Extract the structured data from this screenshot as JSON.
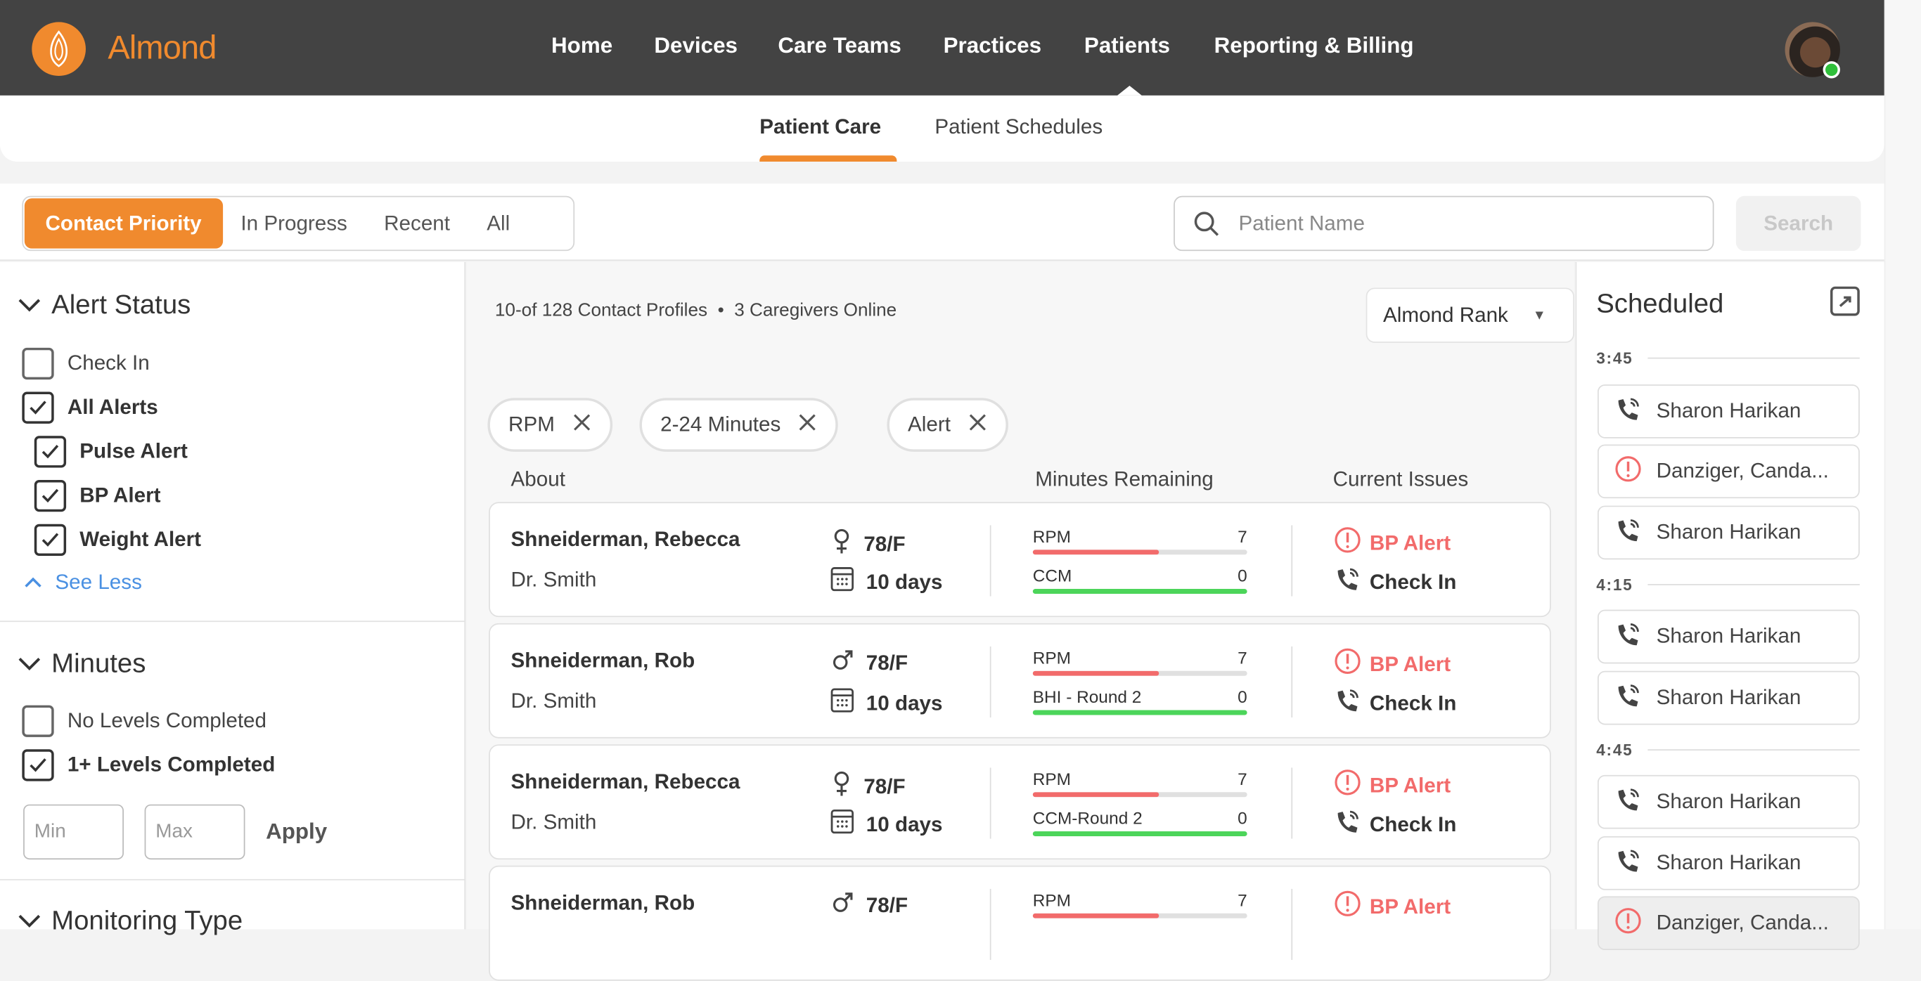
{
  "brand": {
    "name": "Almond",
    "accent": "#f08a2e"
  },
  "nav": {
    "items": [
      "Home",
      "Devices",
      "Care Teams",
      "Practices",
      "Patients",
      "Reporting & Billing"
    ],
    "active": "Patients"
  },
  "subnav": {
    "items": [
      "Patient Care",
      "Patient Schedules"
    ],
    "active": "Patient Care"
  },
  "filters": {
    "segments": [
      "Contact Priority",
      "In Progress",
      "Recent",
      "All"
    ],
    "active": "Contact Priority"
  },
  "search": {
    "placeholder": "Patient Name",
    "value": "",
    "button": "Search"
  },
  "sidebar": {
    "alert_status": {
      "title": "Alert Status",
      "items": [
        {
          "label": "Check In",
          "checked": false
        },
        {
          "label": "All Alerts",
          "checked": true
        },
        {
          "label": "Pulse Alert",
          "checked": true
        },
        {
          "label": "BP Alert",
          "checked": true
        },
        {
          "label": "Weight Alert",
          "checked": true
        }
      ],
      "see_less": "See Less"
    },
    "minutes": {
      "title": "Minutes",
      "items": [
        {
          "label": "No Levels Completed",
          "checked": false
        },
        {
          "label": "1+ Levels Completed",
          "checked": true
        }
      ],
      "min_placeholder": "Min",
      "max_placeholder": "Max",
      "apply": "Apply"
    },
    "monitoring_type": {
      "title": "Monitoring Type"
    }
  },
  "main": {
    "status": "10-of 128 Contact Profiles  •  3 Caregivers Online",
    "sort": "Almond Rank",
    "chips": [
      "RPM",
      "2-24 Minutes",
      "Alert"
    ],
    "columns": [
      "About",
      "Minutes Remaining",
      "Current Issues"
    ],
    "patients": [
      {
        "name": "Shneiderman, Rebecca",
        "doctor": "Dr. Smith",
        "gender_icon": "female",
        "age": "78/F",
        "days": "10 days",
        "programs": [
          {
            "label": "RPM",
            "value": "7",
            "progress": 0.59,
            "color": "#f26b6b"
          },
          {
            "label": "CCM",
            "value": "0",
            "progress": 1,
            "color": "#4cd55a"
          }
        ],
        "issues": [
          "BP Alert",
          "Check In"
        ]
      },
      {
        "name": "Shneiderman, Rob",
        "doctor": "Dr. Smith",
        "gender_icon": "male",
        "age": "78/F",
        "days": "10 days",
        "programs": [
          {
            "label": "RPM",
            "value": "7",
            "progress": 0.59,
            "color": "#f26b6b"
          },
          {
            "label": "BHI - Round 2",
            "value": "0",
            "progress": 1,
            "color": "#4cd55a"
          }
        ],
        "issues": [
          "BP Alert",
          "Check In"
        ]
      },
      {
        "name": "Shneiderman, Rebecca",
        "doctor": "Dr. Smith",
        "gender_icon": "female",
        "age": "78/F",
        "days": "10 days",
        "programs": [
          {
            "label": "RPM",
            "value": "7",
            "progress": 0.59,
            "color": "#f26b6b"
          },
          {
            "label": "CCM-Round 2",
            "value": "0",
            "progress": 1,
            "color": "#4cd55a"
          }
        ],
        "issues": [
          "BP Alert",
          "Check In"
        ]
      },
      {
        "name": "Shneiderman, Rob",
        "doctor": "",
        "gender_icon": "male",
        "age": "78/F",
        "days": "",
        "programs": [
          {
            "label": "RPM",
            "value": "7",
            "progress": 0.59,
            "color": "#f26b6b"
          }
        ],
        "issues": [
          "BP Alert"
        ]
      }
    ]
  },
  "scheduled": {
    "title": "Scheduled",
    "groups": [
      {
        "time": "3:45",
        "items": [
          {
            "name": "Sharon Harikan",
            "icon": "phone"
          },
          {
            "name": "Danziger, Canda...",
            "icon": "alert"
          },
          {
            "name": "Sharon Harikan",
            "icon": "phone"
          }
        ]
      },
      {
        "time": "4:15",
        "items": [
          {
            "name": "Sharon Harikan",
            "icon": "phone"
          },
          {
            "name": "Sharon Harikan",
            "icon": "phone"
          }
        ]
      },
      {
        "time": "4:45",
        "items": [
          {
            "name": "Sharon Harikan",
            "icon": "phone"
          },
          {
            "name": "Sharon Harikan",
            "icon": "phone"
          },
          {
            "name": "Danziger, Canda...",
            "icon": "alert"
          }
        ]
      }
    ]
  },
  "colors": {
    "alert": "#f26b6b",
    "link": "#4a90e2",
    "header": "#434343"
  }
}
